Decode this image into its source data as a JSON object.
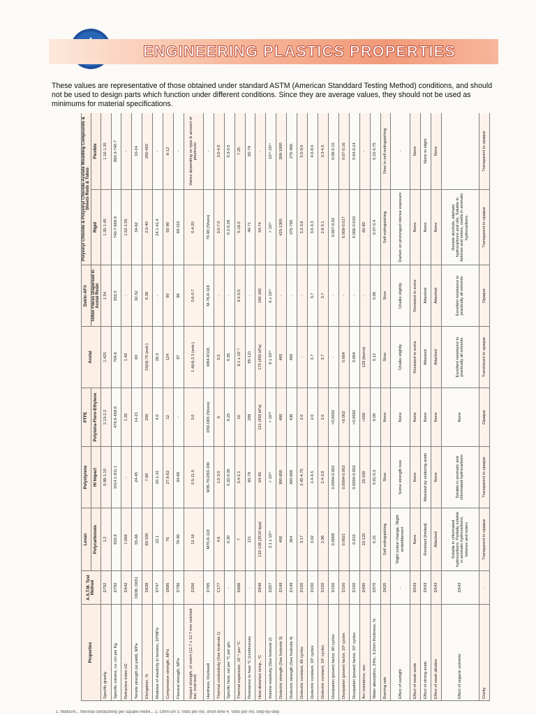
{
  "header": {
    "title": "ENGINEERING PLASTICS PROPERTIES",
    "logo_icon": "company-logo-icon",
    "banner_color": "#f19a79"
  },
  "intro": "These values are representative of those obtained under standard ASTM (American Standdard Testing Method) conditions, and should not be used to design parts which function under different conditions. Since they are average values, they should not be used as minimums for material specifications.",
  "table": {
    "headers": {
      "properties": "Properties",
      "astm": "A.S.T.M. Test Method",
      "lexan": "Lexan",
      "lexan_sub": "Polycarbonate",
      "polystyrene": "Polystyrene",
      "polystyrene_sub": "Hi Impact",
      "ptfe": "PTFE",
      "ptfe_sub": "Polytetra-Fluro-Ethylene",
      "acetal": "Acetal",
      "delrin": "Delrin AF®",
      "delrin_sub": "Teflon Fibres Dispersed in Acetal Resin",
      "pvc": "Polyvinyl Chloride & Polyvinyl Chloride-Acetate Moulding Compounds & Sheets Rods & Tubes",
      "pvc_rigid": "Rigid",
      "pvc_flexible": "Flexible"
    },
    "rows": [
      [
        "Specific gravity",
        "D792",
        "1.2",
        "0.98-1.10",
        "2.13-2.2",
        "1.425",
        "1.54",
        "1.35-1.45",
        "1.16-1.35"
      ],
      [
        "Specific volume, cu. cm per Kg.",
        "D792",
        "833.8",
        "1014.1-911.1",
        "476.9-458.6",
        "704.6",
        "652.5",
        "740.7-689.9",
        "860.3-740.7"
      ],
      [
        "Refractive index nD",
        "D542",
        "1.586",
        "-",
        "1.35",
        "1.48",
        "-",
        "1.52-1.55",
        "-"
      ],
      [
        "Tensile strength (at yield), MPa",
        "D638, D651",
        "55-66",
        "24-45",
        "14-21",
        "69",
        "32-52",
        "34-62",
        "10-24"
      ],
      [
        "Elongation, %",
        "D638",
        "60-100",
        "7-60",
        "200",
        "15(H)-75 (estr.)",
        "6.38",
        "2.0-40",
        "200-450"
      ],
      [
        "Modulus of elasticity in tension, 10³MPa",
        "D747",
        "22.1",
        "20.1-31",
        "4.0",
        "28.3",
        "-",
        "24.1-41.4",
        "-"
      ],
      [
        "Compressive strength, MPa",
        "D695",
        "76",
        "27.6-62",
        "12",
        "124",
        "90",
        "55-90",
        "6-12"
      ],
      [
        "Flexural strength, MPa",
        "D790",
        "76-90",
        "34-69",
        "-",
        "97",
        "98",
        "69-110",
        "-"
      ],
      [
        "Impact strength, of notch (12.7 x 12.7 mm notched bar, Izod test)",
        "D256",
        "12-16",
        "0.5-11.0",
        "3.0",
        "1.4(H)-2.3 (entr.)",
        "0.6-0.7",
        "0.4-20",
        "Varies depending on type & amount of plasticizer"
      ],
      [
        "Hardness, Rockwell",
        "D785",
        "M70,R-118",
        "M35-70,R50-100",
        "D50-D65 (Shore)",
        "M94-R118",
        "M-78,R-118",
        "70-90 (Shore)",
        "-"
      ],
      [
        "Thermal conductivity (See footnote 1)",
        "C177",
        "4.6",
        "1.0-3.0",
        "6",
        "5.5",
        "-",
        "3.0-7.0",
        "3.0-4.0"
      ],
      [
        "Specific heat, cal per °C per gm.",
        "-",
        "0.30",
        "0.32-0.35",
        "0.25",
        "0.35",
        "-",
        "0.2-0.28",
        "0.3-0.5"
      ],
      [
        "Thermal expansion, 10⁻⁵ per °C",
        "D696",
        "7",
        "3.4-2.1",
        "10",
        "8.1 x 10⁻⁵",
        "4.5-5.5",
        "5-18.5",
        "7.25"
      ],
      [
        "Resistance to heat °C (continuous)",
        "-",
        "121",
        "60-79",
        "288",
        "85-121",
        "-",
        "49-71",
        "65-79"
      ],
      [
        "Heat distortion temp., °C",
        "D648",
        "132-138 (3510 kpa)",
        "64-93",
        "121 (455 kPa)",
        "170 (455 kPa)",
        "100-165",
        "54-74",
        "-"
      ],
      [
        "Volume resistivity (See footnote 2)",
        "D257",
        "2.1 x 10¹⁶",
        "> 10¹⁶",
        "> 10¹⁸",
        "6 x 10¹⁴",
        "6 x 10¹⁴",
        "> 10¹⁶",
        "10¹¹-10¹⁶"
      ],
      [
        "Dielectric strength (See footnote 3)",
        "D149",
        "400",
        "300-600",
        "480",
        "465",
        "-",
        "425-1300",
        "300-1000"
      ],
      [
        "Dielectric strength (See footnote 4)",
        "D149",
        "364",
        "300-600",
        "430",
        "400",
        "-",
        "375-750",
        "275-900"
      ],
      [
        "Dielectric constant, 60 cycles",
        "D150",
        "3.17",
        "2.45-4.75",
        "2.0",
        "-",
        "-",
        "3.2-3.6",
        "5.0-9.0"
      ],
      [
        "Dielectric constant, 10³ cycles",
        "D150",
        "3.02",
        "2.4-4.5",
        "2.0",
        "3.7",
        "3.7",
        "3.0-3.3",
        "4.0-8.0"
      ],
      [
        "Dielectric constant, 10⁶ cycles",
        "D150",
        "2.96",
        "2.4-3.8",
        "2.0",
        "3.7",
        "3.7",
        "2.8-3.1",
        "3.3-4.5"
      ],
      [
        "Dissipation (power) factor, 60 cycles",
        "D150",
        "0.0009",
        "0.0004-0.002",
        "<0.0002",
        "-",
        "-",
        "0.007-0.02",
        "0.08-0.15"
      ],
      [
        "Dissipation (power) factor, 10³ cycles",
        "D150",
        "0.0021",
        "0.0004-0.002",
        "<0.002",
        "0.004",
        "-",
        "0.009-0.017",
        "0.07-0.16"
      ],
      [
        "Dissipation (power) factor, 10⁶ cycles",
        "D150",
        "0.010",
        "0.0004-0.002",
        "<0.0002",
        "0.004",
        "-",
        "0.006-0.019",
        "0.04-0.14"
      ],
      [
        "Arc resistance, sec.",
        "D495",
        "10-120",
        "20-100",
        ">200",
        "129 (burns)",
        "-",
        "60-80",
        "-"
      ],
      [
        "Water absorption, 24hr., 3.2mm thickness, %",
        "D570",
        "0.15",
        "0.01-0.3",
        "0.00",
        "0.12",
        "0.06",
        "0.07-0.4",
        "0.15-0.75"
      ],
      [
        "Burning rate",
        "D635",
        "Self extinguishing",
        "Slow",
        "None",
        "Slow",
        "Slow",
        "Self-extinguishing",
        "Slow to self-extinguishing"
      ],
      [
        "Effect of sunlight",
        "-",
        "Slight colour change, Slight embrittlement",
        "Some strength loss",
        "None",
        "Chalks slightly",
        "Chalks slightly",
        "Darken on prolonged intense exposure",
        "-"
      ],
      [
        "Effect of weak acids",
        "D543",
        "None",
        "None",
        "None",
        "Resistant to some",
        "Resistant to some",
        "None",
        "None"
      ],
      [
        "Effect of strong acids",
        "D543",
        "Resistant (limited)",
        "Attacked by oxidizing acids",
        "None",
        "Attacked",
        "Attacked",
        "None",
        "None to slight"
      ],
      [
        "Effect of weak alkalies",
        "D543",
        "Attacked",
        "None",
        "None",
        "Attacked",
        "Attacked",
        "None",
        "None"
      ],
      [
        "Effect of organic solvents",
        "D543",
        "Soluble in chlorinated hydrocarbons. Partially soluble in aromatic hydrocarbons, ketones and esters",
        "Soluble in aromatic and chlorinated hydrocarbons",
        "None",
        "Excellent resistance to practically all solvents",
        "Excellent resistance to practically all solvents",
        "Resists alcohols, aliphatic hydrocarbons and oils. Soluble in ketones and esters, swells in aromatic hydrocarbons.",
        ""
      ],
      [
        "Clarity",
        "-",
        "Transparent to opaque",
        "Transparent to opaque",
        "Opaque",
        "Translucent to opaque",
        "Opaque",
        "Transparent to opaque",
        "Transparent to opaque"
      ]
    ]
  },
  "footer_note": "1. Watts/m... thermal conductivity per square metre... 2. Ohm-cm 3. Volts per mil, short-time 4. Volts per mil, step-by-step"
}
